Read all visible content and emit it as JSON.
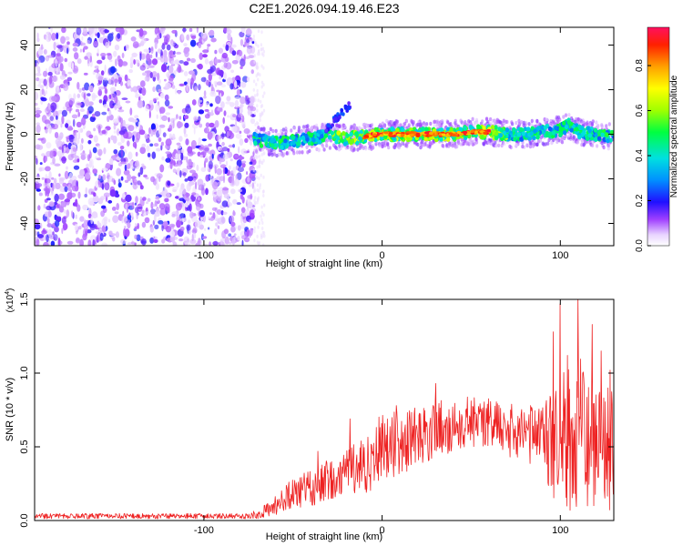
{
  "title": "C2E1.2026.094.19.46.E23",
  "chart_data": [
    {
      "type": "heatmap",
      "title": "C2E1.2026.094.19.46.E23",
      "xlabel": "Height of straight line (km)",
      "ylabel": "Frequency (Hz)",
      "xlim": [
        -195,
        130
      ],
      "ylim": [
        -50,
        48
      ],
      "xticks": [
        -100,
        0,
        100
      ],
      "yticks": [
        -40,
        -20,
        0,
        20,
        40
      ],
      "noise_region_x": [
        -195,
        -72
      ],
      "trace": {
        "x": [
          -72,
          -60,
          -50,
          -40,
          -30,
          -20,
          -10,
          0,
          10,
          20,
          30,
          40,
          50,
          60,
          70,
          80,
          90,
          100,
          105,
          110,
          120,
          130
        ],
        "freq": [
          -2,
          -4,
          -3,
          -2,
          -1,
          -2,
          -1,
          0,
          0,
          0,
          0,
          0,
          1,
          1,
          0,
          0,
          1,
          2,
          4,
          1,
          0,
          -1
        ]
      },
      "colorbar": {
        "label": "Normalized spectral amplitude",
        "ticks": [
          "0.0",
          "0.2",
          "0.4",
          "0.6",
          "0.8"
        ],
        "range": [
          0,
          0.97
        ]
      }
    },
    {
      "type": "line",
      "xlabel": "Height of straight line (km)",
      "ylabel": "SNR (10 * v/v)",
      "scale_note": "(x10",
      "scale_exp": "4",
      "color": "#ee2222",
      "xlim": [
        -195,
        130
      ],
      "ylim": [
        0,
        1.5
      ],
      "xticks": [
        -100,
        0,
        100
      ],
      "yticks": [
        "0.0",
        "0.5",
        "1.0",
        "1.5"
      ],
      "envelope": {
        "x": [
          -195,
          -75,
          -65,
          -55,
          -45,
          -35,
          -25,
          -20,
          -10,
          -5,
          0,
          10,
          20,
          30,
          40,
          50,
          60,
          70,
          80,
          90,
          95,
          100,
          105,
          110,
          115,
          120,
          125,
          130
        ],
        "mean": [
          0.03,
          0.03,
          0.06,
          0.14,
          0.2,
          0.24,
          0.3,
          0.37,
          0.38,
          0.42,
          0.5,
          0.52,
          0.58,
          0.62,
          0.65,
          0.66,
          0.65,
          0.62,
          0.58,
          0.55,
          0.53,
          0.52,
          0.56,
          0.6,
          0.55,
          0.52,
          0.5,
          0.48
        ],
        "spread": [
          0.018,
          0.018,
          0.05,
          0.1,
          0.12,
          0.14,
          0.16,
          0.18,
          0.2,
          0.22,
          0.24,
          0.22,
          0.2,
          0.2,
          0.18,
          0.18,
          0.18,
          0.18,
          0.2,
          0.25,
          0.35,
          0.45,
          0.5,
          0.55,
          0.5,
          0.48,
          0.45,
          0.42
        ]
      },
      "peaks": [
        {
          "x": 110,
          "y": 1.5
        },
        {
          "x": 100,
          "y": 1.47
        },
        {
          "x": 118,
          "y": 1.33
        },
        {
          "x": 96,
          "y": 1.28
        },
        {
          "x": 123,
          "y": 1.15
        },
        {
          "x": 128,
          "y": 1.02
        },
        {
          "x": 104,
          "y": 1.12
        },
        {
          "x": 30,
          "y": 0.93
        },
        {
          "x": 8,
          "y": 0.78
        },
        {
          "x": -18,
          "y": 0.69
        },
        {
          "x": -36,
          "y": 0.47
        }
      ]
    }
  ]
}
